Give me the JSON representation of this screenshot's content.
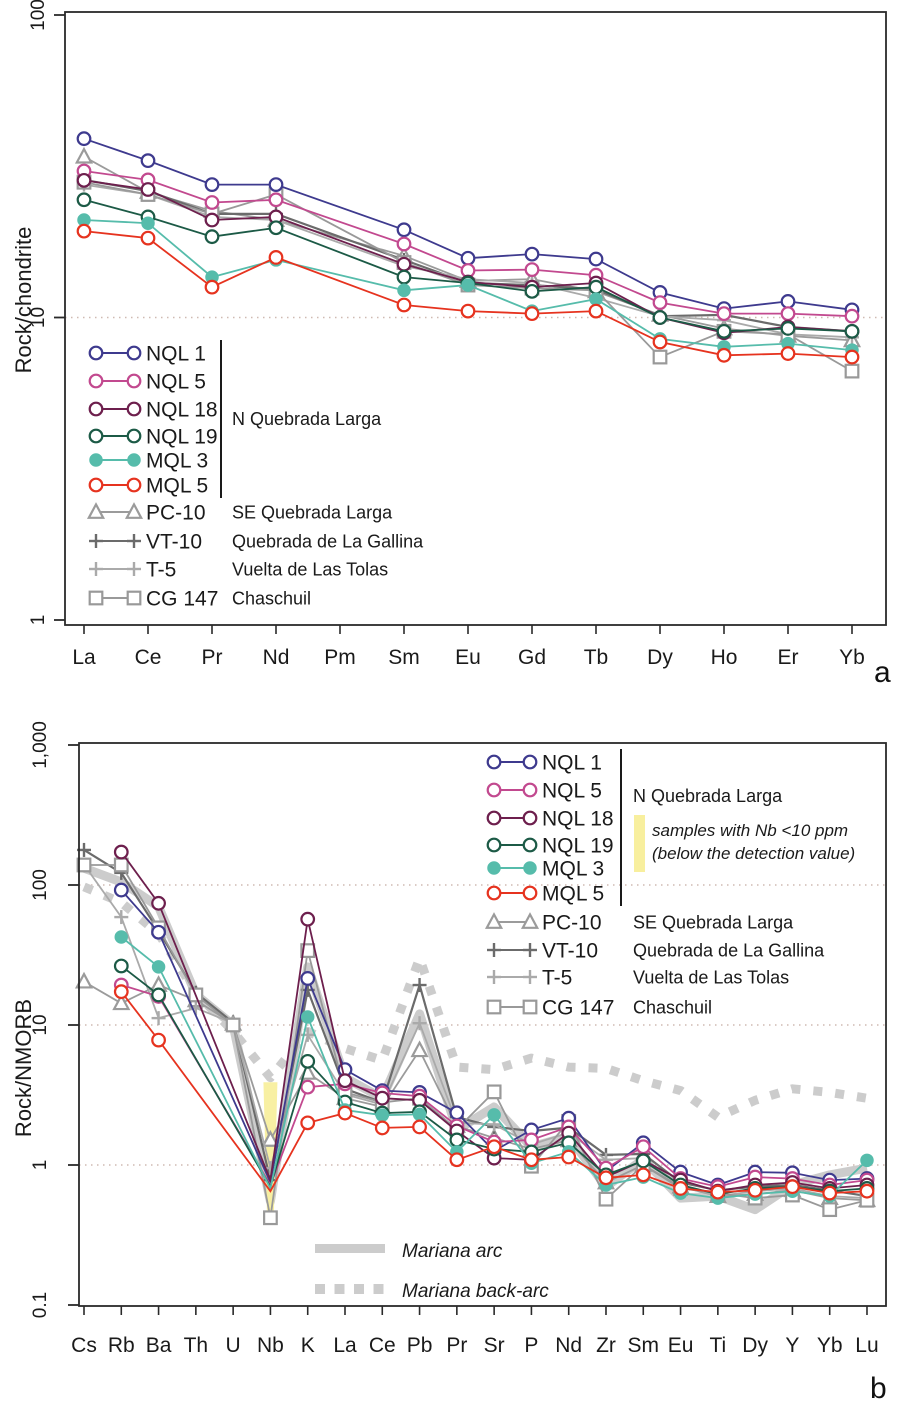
{
  "chart_data": [
    {
      "type": "line",
      "id": "panel-a-ree-diagram",
      "corner_label": "a",
      "title": "",
      "xlabel": "",
      "ylabel": "Rock/chondrite",
      "yscale": "log",
      "ylim": [
        1,
        100
      ],
      "grid": "dotted-at-decades",
      "legend_position": "inside-left",
      "y_ticks": [
        {
          "v": 100,
          "label": "100"
        },
        {
          "v": 10,
          "label": "10"
        },
        {
          "v": 1,
          "label": "1"
        }
      ],
      "grid_values": [
        10
      ],
      "x": [
        "La",
        "Ce",
        "Pr",
        "Nd",
        "Pm",
        "Sm",
        "Eu",
        "Gd",
        "Tb",
        "Dy",
        "Ho",
        "Er",
        "Yb"
      ],
      "legend_group_label": "N Quebrada Larga",
      "series": [
        {
          "name": "NQL 1",
          "location": "",
          "group": "N Quebrada Larga",
          "color": "#3e3a8e",
          "marker": "circle-open",
          "values": [
            39,
            33,
            27.5,
            27.5,
            null,
            19.5,
            15.7,
            16.2,
            15.6,
            12.1,
            10.7,
            11.3,
            10.6
          ]
        },
        {
          "name": "NQL 5",
          "location": "",
          "group": "N Quebrada Larga",
          "color": "#c2498f",
          "marker": "circle-open",
          "values": [
            30.5,
            28.5,
            24,
            24.5,
            null,
            17.5,
            14.3,
            14.4,
            13.8,
            11.2,
            10.3,
            10.3,
            10.1
          ]
        },
        {
          "name": "NQL 18",
          "location": "",
          "group": "N Quebrada Larga",
          "color": "#6d1f4d",
          "marker": "circle-open",
          "values": [
            28.4,
            26.5,
            21,
            21.5,
            null,
            15,
            13.1,
            12.6,
            13,
            10,
            8.9,
            9.3,
            9
          ]
        },
        {
          "name": "NQL 19",
          "location": "",
          "group": "N Quebrada Larga",
          "color": "#1c5a46",
          "marker": "circle-open",
          "values": [
            24.5,
            21.5,
            18.5,
            19.8,
            null,
            13.6,
            13,
            12.2,
            12.6,
            10,
            9,
            9.2,
            9
          ]
        },
        {
          "name": "MQL 3",
          "location": "",
          "group": "N Quebrada Larga",
          "color": "#56bcab",
          "marker": "circle-filled",
          "values": [
            21,
            20.5,
            13.6,
            15.5,
            null,
            12.3,
            12.8,
            10.5,
            11.5,
            8.5,
            8,
            8.2,
            7.8
          ]
        },
        {
          "name": "MQL 5",
          "location": "",
          "group": "N Quebrada Larga",
          "color": "#e6331f",
          "marker": "circle-open",
          "values": [
            19.3,
            18.3,
            12.6,
            15.8,
            null,
            11,
            10.5,
            10.3,
            10.5,
            8.3,
            7.5,
            7.6,
            7.4
          ]
        },
        {
          "name": "PC-10",
          "location": "SE Quebrada Larga",
          "color": "#9b9b9b",
          "marker": "triangle-open",
          "values": [
            34,
            26,
            22.5,
            21,
            null,
            16,
            13.2,
            13.4,
            12.2,
            10.2,
            9.2,
            8.7,
            8.4
          ]
        },
        {
          "name": "VT-10",
          "location": "Quebrada de La Gallina",
          "color": "#6b6b6b",
          "marker": "plus",
          "values": [
            28.5,
            26.2,
            22,
            22,
            null,
            15.5,
            13,
            12.8,
            12.4,
            10.1,
            10.2,
            9.3,
            9
          ]
        },
        {
          "name": "T-5",
          "location": "Vuelta de Las Tolas",
          "color": "#aaaaaa",
          "marker": "plus",
          "values": [
            27.5,
            25.5,
            21.5,
            21,
            null,
            14.8,
            13.4,
            13,
            11.6,
            10.1,
            9.8,
            8.8,
            8.6
          ]
        },
        {
          "name": "CG 147",
          "location": "Chaschuil",
          "color": "#999999",
          "marker": "square-open",
          "values": [
            28,
            25.5,
            22,
            25.5,
            null,
            15.2,
            12.8,
            12.5,
            12.3,
            7.4,
            9,
            8.8,
            6.65
          ]
        }
      ]
    },
    {
      "type": "line",
      "id": "panel-b-nmorb-diagram",
      "corner_label": "b",
      "title": "",
      "xlabel": "",
      "ylabel": "Rock/NMORB",
      "yscale": "log",
      "ylim": [
        0.1,
        1000
      ],
      "grid": "dotted-at-decades",
      "legend_position": "inside-top-right",
      "y_ticks": [
        {
          "v": 1000,
          "label": "1,000"
        },
        {
          "v": 100,
          "label": "100"
        },
        {
          "v": 10,
          "label": "10"
        },
        {
          "v": 1,
          "label": "1"
        },
        {
          "v": 0.1,
          "label": "0.1"
        }
      ],
      "grid_values": [
        100,
        10,
        1
      ],
      "x": [
        "Cs",
        "Rb",
        "Ba",
        "Th",
        "U",
        "Nb",
        "K",
        "La",
        "Ce",
        "Pb",
        "Pr",
        "Sr",
        "P",
        "Nd",
        "Zr",
        "Sm",
        "Eu",
        "Ti",
        "Dy",
        "Y",
        "Yb",
        "Lu"
      ],
      "legend_group_label": "N Quebrada Larga",
      "note": {
        "lines": [
          "samples with Nb <10 ppm",
          "(below the detection value)"
        ],
        "highlight_color": "#f8ef9e"
      },
      "nb_band": {
        "element": "Nb",
        "v_top": 3.9,
        "v_bottom": 0.46
      },
      "series": [
        {
          "name": "NQL 1",
          "location": "",
          "group": "N Quebrada Larga",
          "color": "#3e3a8e",
          "marker": "circle-open",
          "no_marker_at": [
            "Nb"
          ],
          "values": [
            null,
            92,
            46,
            null,
            null,
            0.75,
            21.5,
            4.8,
            3.4,
            3.3,
            2.36,
            1.26,
            1.78,
            2.16,
            0.9,
            1.44,
            0.89,
            0.72,
            0.89,
            0.88,
            0.78,
            0.8
          ]
        },
        {
          "name": "NQL 5",
          "location": "",
          "group": "N Quebrada Larga",
          "color": "#c2498f",
          "marker": "circle-open",
          "no_marker_at": [
            "Nb"
          ],
          "values": [
            null,
            19.3,
            16,
            null,
            null,
            0.72,
            3.6,
            3.8,
            3.27,
            3.1,
            1.9,
            1.46,
            1.51,
            1.87,
            0.95,
            1.35,
            0.8,
            0.7,
            0.82,
            0.8,
            0.72,
            0.78
          ]
        },
        {
          "name": "NQL 18",
          "location": "",
          "group": "N Quebrada Larga",
          "color": "#6d1f4d",
          "marker": "circle-open",
          "no_marker_at": [
            "Nb"
          ],
          "values": [
            null,
            172,
            74,
            null,
            null,
            0.78,
            57,
            4,
            3,
            2.9,
            1.75,
            1.12,
            1.09,
            1.69,
            0.82,
            1.08,
            0.78,
            0.65,
            0.72,
            0.75,
            0.68,
            0.72
          ]
        },
        {
          "name": "NQL 19",
          "location": "",
          "group": "N Quebrada Larga",
          "color": "#1c5a46",
          "marker": "circle-open",
          "no_marker_at": [
            "Nb"
          ],
          "values": [
            null,
            26.4,
            16.4,
            null,
            null,
            0.7,
            5.5,
            2.82,
            2.35,
            2.4,
            1.51,
            1.3,
            1.24,
            1.44,
            0.85,
            1.07,
            0.72,
            0.62,
            0.68,
            0.7,
            0.65,
            0.68
          ]
        },
        {
          "name": "MQL 3",
          "location": "",
          "group": "N Quebrada Larga",
          "color": "#56bcab",
          "marker": "circle-filled",
          "no_marker_at": [
            "Nb"
          ],
          "values": [
            null,
            42.5,
            26,
            null,
            null,
            0.68,
            11.4,
            2.47,
            2.27,
            2.3,
            1.24,
            2.28,
            1.03,
            1.24,
            0.72,
            0.82,
            0.63,
            0.58,
            0.62,
            0.65,
            0.6,
            1.08
          ]
        },
        {
          "name": "MQL 5",
          "location": "",
          "group": "N Quebrada Larga",
          "color": "#e6331f",
          "marker": "circle-open",
          "no_marker_at": [
            "Nb"
          ],
          "values": [
            null,
            17.3,
            7.8,
            null,
            null,
            0.65,
            2,
            2.35,
            1.84,
            1.87,
            1.09,
            1.35,
            1.09,
            1.14,
            0.81,
            0.85,
            0.68,
            0.64,
            0.66,
            0.7,
            0.63,
            0.65
          ]
        },
        {
          "name": "PC-10",
          "location": "SE Quebrada Larga",
          "color": "#9b9b9b",
          "marker": "triangle-open",
          "values": [
            20.4,
            14.3,
            19.3,
            15,
            10.2,
            1.51,
            4.55,
            3,
            2.6,
            6.6,
            1.9,
            1.56,
            1.3,
            1.5,
            0.75,
            1,
            0.7,
            0.6,
            0.62,
            0.66,
            0.58,
            0.56
          ]
        },
        {
          "name": "VT-10",
          "location": "Quebrada de La Gallina",
          "color": "#6b6b6b",
          "marker": "plus",
          "values": [
            178,
            122,
            47,
            17,
            10.4,
            0.78,
            17.8,
            3.5,
            2.8,
            19.3,
            2.2,
            1.87,
            1.75,
            1.85,
            1.18,
            1.2,
            0.75,
            0.66,
            0.7,
            0.72,
            0.66,
            0.6
          ]
        },
        {
          "name": "T-5",
          "location": "Vuelta de Las Tolas",
          "color": "#aaaaaa",
          "marker": "plus",
          "values": [
            140,
            59,
            11.2,
            13.2,
            10.3,
            0.95,
            8.5,
            3.2,
            2.7,
            10.3,
            2,
            1.95,
            1.4,
            1.7,
            1.09,
            1.12,
            0.72,
            0.6,
            0.65,
            0.68,
            0.6,
            0.58
          ]
        },
        {
          "name": "CG 147",
          "location": "Chaschuil",
          "color": "#999999",
          "marker": "square-open",
          "values": [
            139,
            139,
            49.4,
            16.4,
            10,
            0.42,
            34,
            3.3,
            2.8,
            3,
            1.8,
            3.33,
            0.98,
            2.05,
            0.57,
            1,
            0.68,
            0.63,
            0.58,
            0.61,
            0.48,
            0.56
          ]
        }
      ],
      "reference_series": [
        {
          "name": "Mariana arc",
          "style": "solid",
          "color": "#cccccc",
          "values": [
            132,
            105,
            70,
            16.5,
            10,
            0.55,
            26,
            4.2,
            3,
            12,
            1.78,
            2.6,
            1.35,
            1.6,
            0.7,
            1.1,
            0.58,
            0.6,
            0.48,
            0.72,
            0.85,
            0.95
          ]
        },
        {
          "name": "Mariana back-arc",
          "style": "dashed",
          "color": "#cccccc",
          "values": [
            97,
            75,
            45,
            17,
            9,
            4.2,
            9,
            6.8,
            5.6,
            30,
            5,
            4.8,
            5.8,
            5,
            4.9,
            4,
            3.4,
            2.2,
            2.9,
            3.5,
            3.3,
            3
          ]
        }
      ]
    }
  ]
}
